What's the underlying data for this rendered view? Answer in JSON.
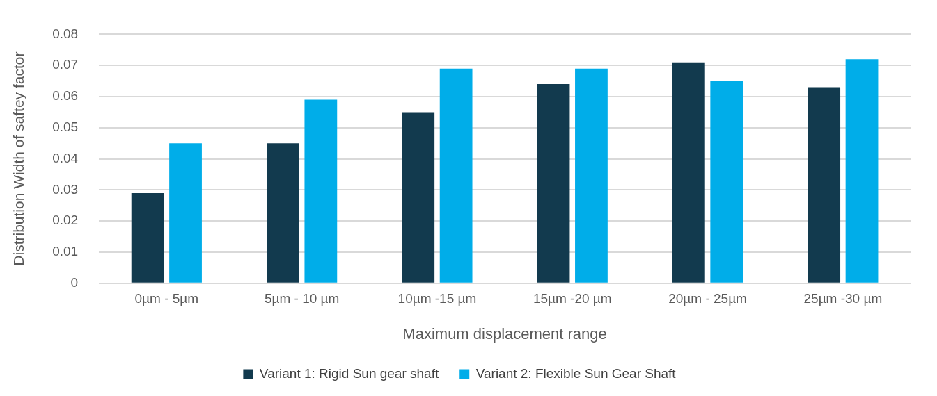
{
  "chart_data": {
    "type": "bar",
    "xlabel": "Maximum displacement range",
    "ylabel": "Distribution Width of saftey factor",
    "categories": [
      "0µm - 5µm",
      "5µm - 10 µm",
      "10µm -15 µm",
      "15µm -20 µm",
      "20µm - 25µm",
      "25µm -30 µm"
    ],
    "series": [
      {
        "name": "Variant 1: Rigid Sun gear shaft",
        "color": "#123a4e",
        "values": [
          0.029,
          0.045,
          0.055,
          0.064,
          0.071,
          0.063
        ]
      },
      {
        "name": "Variant 2: Flexible Sun Gear Shaft",
        "color": "#00ade9",
        "values": [
          0.045,
          0.059,
          0.069,
          0.069,
          0.065,
          0.072
        ]
      }
    ],
    "ylim": [
      0,
      0.08
    ],
    "yticks": [
      0,
      0.01,
      0.02,
      0.03,
      0.04,
      0.05,
      0.06,
      0.07,
      0.08
    ],
    "grid": "y",
    "legend": "bottom"
  }
}
